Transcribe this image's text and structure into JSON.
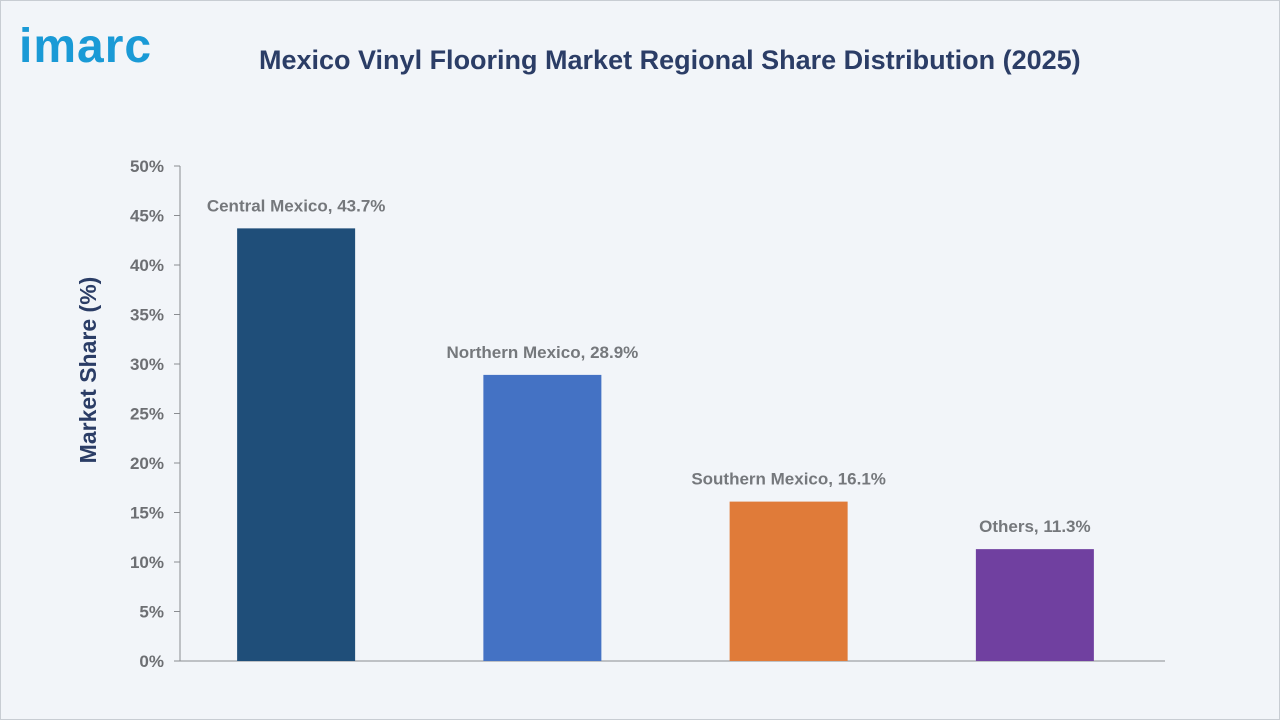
{
  "logo": {
    "text": "imarc"
  },
  "chart_data": {
    "type": "bar",
    "title": "Mexico Vinyl Flooring Market Regional Share Distribution (2025)",
    "xlabel": "",
    "ylabel": "Market Share (%)",
    "ylim": [
      0,
      50
    ],
    "yticks": [
      0,
      5,
      10,
      15,
      20,
      25,
      30,
      35,
      40,
      45,
      50
    ],
    "ytick_suffix": "%",
    "grid": false,
    "categories": [
      "Central Mexico",
      "Northern Mexico",
      "Southern Mexico",
      "Others"
    ],
    "values": [
      43.7,
      28.9,
      16.1,
      11.3
    ],
    "data_labels": [
      "Central Mexico, 43.7%",
      "Northern Mexico, 28.9%",
      "Southern Mexico, 16.1%",
      "Others, 11.3%"
    ],
    "colors": [
      "#1f4e79",
      "#4472c4",
      "#e07b39",
      "#7040a0"
    ]
  }
}
